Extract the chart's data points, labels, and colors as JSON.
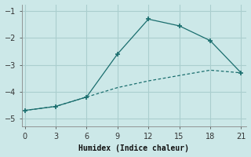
{
  "xlabel": "Humidex (Indice chaleur)",
  "bg_color": "#cce8e8",
  "grid_color": "#aacece",
  "line_color": "#1a6e6e",
  "line1_x": [
    0,
    3,
    6,
    9,
    12,
    15,
    18,
    21
  ],
  "line1_y": [
    -4.7,
    -4.55,
    -4.2,
    -2.6,
    -1.3,
    -1.55,
    -2.1,
    -3.3
  ],
  "line2_x": [
    0,
    3,
    6,
    9,
    12,
    15,
    18,
    21
  ],
  "line2_y": [
    -4.7,
    -4.55,
    -4.2,
    -3.85,
    -3.6,
    -3.4,
    -3.2,
    -3.3
  ],
  "xlim": [
    -0.3,
    21.5
  ],
  "ylim": [
    -5.3,
    -0.75
  ],
  "xticks": [
    0,
    3,
    6,
    9,
    12,
    15,
    18,
    21
  ],
  "yticks": [
    -5,
    -4,
    -3,
    -2,
    -1
  ]
}
